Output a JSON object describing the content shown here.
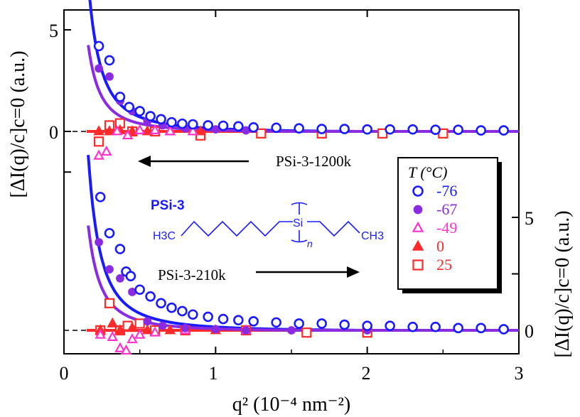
{
  "chart_data": {
    "type": "scatter",
    "xlabel": "q² (10⁻⁴ nm⁻²)",
    "ylabel_left": "[ΔI(q)/c]c=0 (a.u.)",
    "ylabel_right": "[ΔI(q)/c]c=0 (a.u.)",
    "xlim": [
      0,
      3
    ],
    "x_ticks": [
      0,
      1,
      2,
      3
    ],
    "y_ticks_left": [
      0,
      5
    ],
    "y_ticks_right": [
      0,
      5
    ],
    "legend": {
      "title": "T (°C)",
      "placement": "right",
      "entries": [
        {
          "label": "-76",
          "marker": "open-circle",
          "color": "#1a1aff"
        },
        {
          "label": "-67",
          "marker": "filled-circle",
          "color": "#8a2be2"
        },
        {
          "label": "-49",
          "marker": "open-triangle",
          "color": "#ff33cc"
        },
        {
          "label": "0",
          "marker": "filled-triangle",
          "color": "#ff2a2a"
        },
        {
          "label": "25",
          "marker": "open-square",
          "color": "#ff2a2a"
        }
      ]
    },
    "annotations": {
      "upper_label": "PSi-3-1200k",
      "lower_label": "PSi-3-210k",
      "structure_title": "PSi-3",
      "structure_left": "H3C",
      "structure_center": "Si",
      "structure_right": "CH3",
      "structure_n": "n"
    },
    "panels": [
      {
        "name": "PSi-3-1200k",
        "y_axis": "left",
        "series": [
          {
            "name": "-76",
            "points": [
              [
                0.23,
                4.2
              ],
              [
                0.3,
                3.5
              ],
              [
                0.37,
                1.7
              ],
              [
                0.43,
                1.2
              ],
              [
                0.5,
                1.0
              ],
              [
                0.57,
                0.75
              ],
              [
                0.64,
                0.6
              ],
              [
                0.71,
                0.45
              ],
              [
                0.78,
                0.38
              ],
              [
                0.85,
                0.35
              ],
              [
                0.95,
                0.3
              ],
              [
                1.05,
                0.28
              ],
              [
                1.15,
                0.25
              ],
              [
                1.25,
                0.2
              ],
              [
                1.4,
                0.18
              ],
              [
                1.55,
                0.15
              ],
              [
                1.7,
                0.12
              ],
              [
                1.85,
                0.12
              ],
              [
                2.0,
                0.1
              ],
              [
                2.15,
                0.1
              ],
              [
                2.3,
                0.1
              ],
              [
                2.45,
                0.08
              ],
              [
                2.6,
                0.08
              ],
              [
                2.75,
                0.05
              ],
              [
                2.9,
                0.05
              ]
            ]
          },
          {
            "name": "-67",
            "points": [
              [
                0.23,
                3.1
              ],
              [
                0.3,
                2.7
              ],
              [
                0.37,
                1.5
              ],
              [
                0.45,
                1.0
              ],
              [
                0.55,
                0.5
              ],
              [
                0.65,
                0.3
              ],
              [
                0.8,
                0.15
              ],
              [
                1.0,
                0.1
              ],
              [
                1.2,
                0.05
              ]
            ]
          },
          {
            "name": "-49",
            "points": [
              [
                0.23,
                -1.2
              ],
              [
                0.28,
                -1.0
              ],
              [
                0.35,
                0.0
              ],
              [
                0.42,
                -0.2
              ],
              [
                0.5,
                0.05
              ],
              [
                0.6,
                0.05
              ],
              [
                0.7,
                0.0
              ],
              [
                0.85,
                0.0
              ]
            ]
          },
          {
            "name": "0",
            "points": [
              [
                0.23,
                0.0
              ],
              [
                0.3,
                0.0
              ],
              [
                0.37,
                0.05
              ],
              [
                0.45,
                0.0
              ],
              [
                0.55,
                0.0
              ],
              [
                0.7,
                0.0
              ],
              [
                0.9,
                0.0
              ]
            ]
          },
          {
            "name": "25",
            "points": [
              [
                0.23,
                -0.5
              ],
              [
                0.3,
                0.3
              ],
              [
                0.37,
                0.4
              ],
              [
                0.45,
                0.0
              ],
              [
                0.6,
                0.0
              ],
              [
                0.9,
                -0.2
              ],
              [
                1.3,
                -0.1
              ],
              [
                1.7,
                -0.1
              ],
              [
                2.1,
                -0.1
              ],
              [
                2.5,
                -0.1
              ]
            ]
          }
        ],
        "fits": [
          {
            "name": "-76",
            "a": 0.19,
            "b": 0.05,
            "x_start": 0.16
          },
          {
            "name": "-67",
            "a": 0.11,
            "b": 0.05,
            "x_start": 0.16
          }
        ]
      },
      {
        "name": "PSi-3-210k",
        "y_axis": "right",
        "series": [
          {
            "name": "-76",
            "points": [
              [
                0.24,
                5.9
              ],
              [
                0.3,
                4.3
              ],
              [
                0.37,
                3.6
              ],
              [
                0.41,
                2.6
              ],
              [
                0.44,
                2.4
              ],
              [
                0.5,
                1.8
              ],
              [
                0.57,
                1.5
              ],
              [
                0.64,
                1.2
              ],
              [
                0.71,
                1.0
              ],
              [
                0.78,
                0.85
              ],
              [
                0.85,
                0.7
              ],
              [
                0.95,
                0.6
              ],
              [
                1.05,
                0.5
              ],
              [
                1.15,
                0.45
              ],
              [
                1.25,
                0.4
              ],
              [
                1.4,
                0.35
              ],
              [
                1.55,
                0.3
              ],
              [
                1.7,
                0.3
              ],
              [
                1.85,
                0.25
              ],
              [
                2.0,
                0.2
              ],
              [
                2.15,
                0.2
              ],
              [
                2.3,
                0.15
              ],
              [
                2.45,
                0.15
              ],
              [
                2.6,
                0.1
              ],
              [
                2.75,
                0.1
              ],
              [
                2.9,
                0.05
              ]
            ]
          },
          {
            "name": "-67",
            "points": [
              [
                0.23,
                3.9
              ],
              [
                0.3,
                2.7
              ],
              [
                0.37,
                2.3
              ],
              [
                0.45,
                1.7
              ],
              [
                0.55,
                0.4
              ],
              [
                0.65,
                0.2
              ],
              [
                0.8,
                0.1
              ],
              [
                1.0,
                0.05
              ],
              [
                1.2,
                0.0
              ],
              [
                1.5,
                0.0
              ],
              [
                2.0,
                0.0
              ]
            ]
          },
          {
            "name": "-49",
            "points": [
              [
                0.24,
                -0.2
              ],
              [
                0.32,
                -0.3
              ],
              [
                0.37,
                -0.8
              ],
              [
                0.41,
                -0.9
              ],
              [
                0.45,
                -0.4
              ],
              [
                0.5,
                -0.2
              ],
              [
                0.6,
                -0.1
              ],
              [
                0.8,
                0.0
              ],
              [
                1.2,
                0.0
              ]
            ]
          },
          {
            "name": "0",
            "points": [
              [
                0.24,
                0.0
              ],
              [
                0.32,
                0.3
              ],
              [
                0.37,
                0.0
              ],
              [
                0.45,
                0.1
              ],
              [
                0.55,
                0.0
              ],
              [
                0.7,
                0.0
              ],
              [
                1.0,
                0.0
              ]
            ]
          },
          {
            "name": "25",
            "points": [
              [
                0.24,
                0.0
              ],
              [
                0.3,
                1.2
              ],
              [
                0.37,
                0.0
              ],
              [
                0.42,
                0.2
              ],
              [
                0.5,
                0.3
              ],
              [
                0.6,
                0.0
              ],
              [
                0.8,
                0.0
              ],
              [
                1.2,
                0.0
              ],
              [
                1.6,
                -0.1
              ],
              [
                2.0,
                -0.1
              ]
            ]
          }
        ],
        "fits": [
          {
            "name": "-76",
            "a": 0.2,
            "b": 0.05,
            "x_start": 0.16
          },
          {
            "name": "-67",
            "a": 0.12,
            "b": 0.05,
            "x_start": 0.16
          }
        ]
      }
    ]
  }
}
